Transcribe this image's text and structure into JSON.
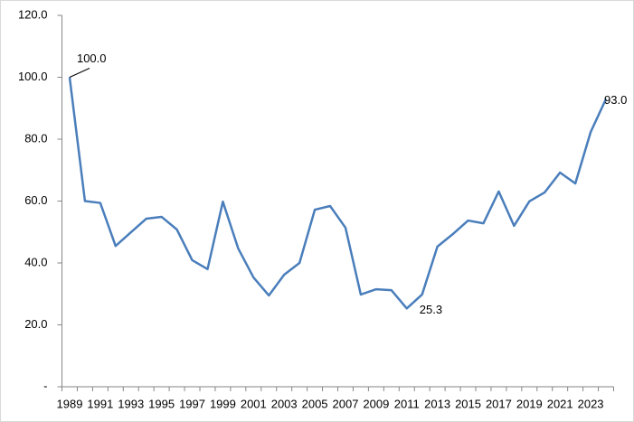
{
  "chart_data": {
    "type": "line",
    "categories": [
      "1989",
      null,
      "1991",
      null,
      "1993",
      null,
      "1995",
      null,
      "1997",
      null,
      "1999",
      null,
      "2001",
      null,
      "2003",
      null,
      "2005",
      null,
      "2007",
      null,
      "2009",
      null,
      "2011",
      null,
      "2013",
      null,
      "2015",
      null,
      "2017",
      null,
      "2019",
      null,
      "2021",
      null,
      "2023",
      null
    ],
    "series": [
      {
        "color": "#4a7ebb",
        "values": [
          100.0,
          60.0,
          59.4,
          45.5,
          49.9,
          54.3,
          54.9,
          50.8,
          40.9,
          38.0,
          59.8,
          44.7,
          35.3,
          29.5,
          36.2,
          40.0,
          57.2,
          58.4,
          51.4,
          29.8,
          31.5,
          31.2,
          25.3,
          29.8,
          45.3,
          49.3,
          53.7,
          52.8,
          63.1,
          52.0,
          59.9,
          62.8,
          69.2,
          65.7,
          82.3,
          93.0
        ],
        "value_labels": [
          "100.0",
          null,
          null,
          null,
          null,
          null,
          null,
          null,
          null,
          null,
          null,
          null,
          null,
          null,
          null,
          null,
          null,
          null,
          null,
          null,
          null,
          null,
          "25.3",
          null,
          null,
          null,
          null,
          null,
          null,
          null,
          null,
          null,
          null,
          null,
          null,
          "93.0"
        ]
      }
    ],
    "ylim": [
      0,
      120
    ],
    "yticks": [
      {
        "value": 0,
        "label": "-"
      },
      {
        "value": 20,
        "label": "20.0"
      },
      {
        "value": 40,
        "label": "40.0"
      },
      {
        "value": 60,
        "label": "60.0"
      },
      {
        "value": 80,
        "label": "80.0"
      },
      {
        "value": 100,
        "label": "100.0"
      },
      {
        "value": 120,
        "label": "120.0"
      }
    ],
    "grid": false
  }
}
